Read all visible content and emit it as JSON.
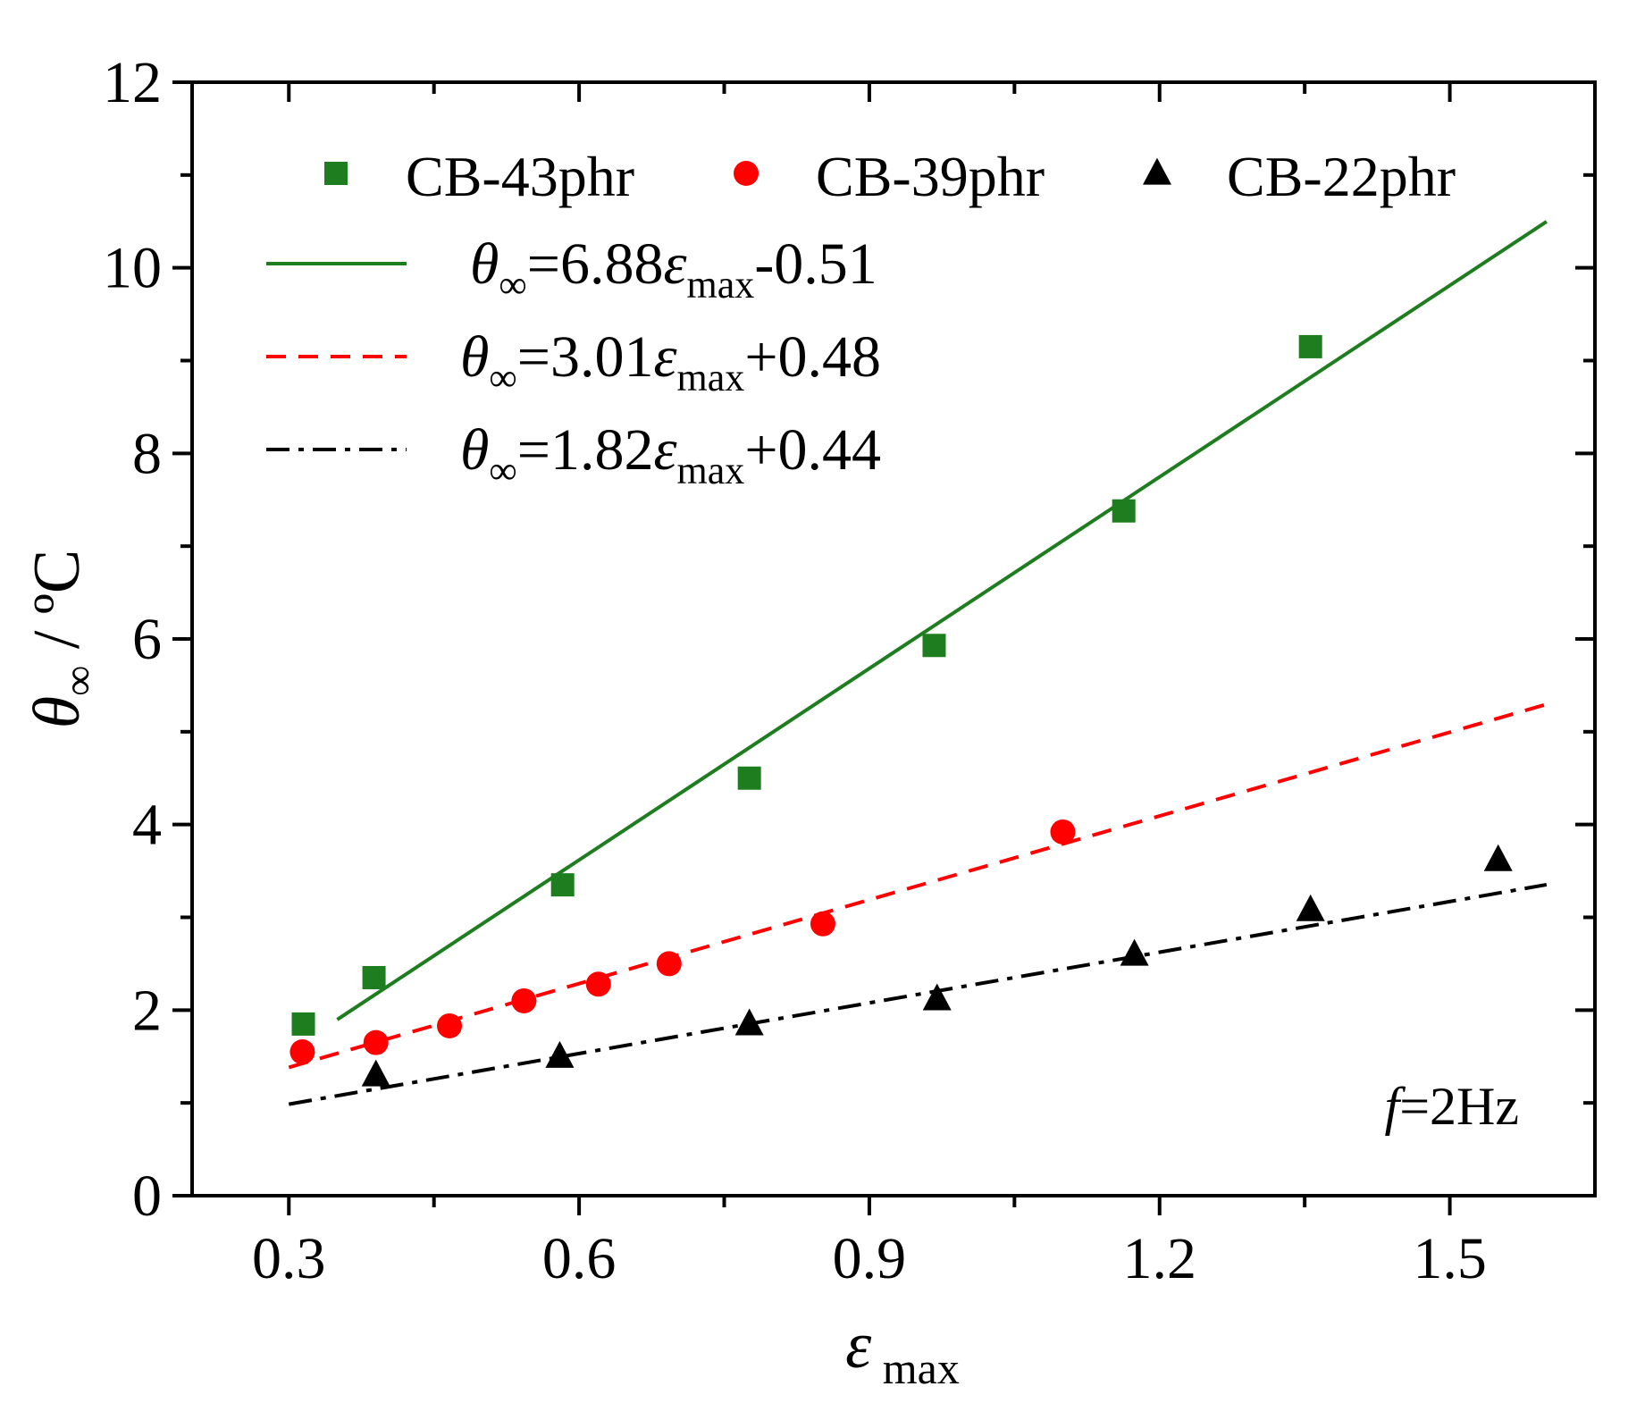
{
  "chart_data": {
    "type": "scatter",
    "xlabel": {
      "symbol": "ε",
      "sub": "max"
    },
    "ylabel": {
      "symbol": "θ",
      "sub": "∞",
      "unit": " / ºC"
    },
    "xlim": [
      0.2,
      1.65
    ],
    "ylim": [
      0,
      12
    ],
    "x_ticks": [
      0.3,
      0.6,
      0.9,
      1.2,
      1.5
    ],
    "x_tick_labels": [
      "0.3",
      "0.6",
      "0.9",
      "1.2",
      "1.5"
    ],
    "x_minor_ticks": [
      0.45,
      0.75,
      1.05,
      1.35
    ],
    "y_ticks": [
      0,
      2,
      4,
      6,
      8,
      10,
      12
    ],
    "y_tick_labels": [
      "0",
      "2",
      "4",
      "6",
      "8",
      "10",
      "12"
    ],
    "y_minor_ticks": [
      1,
      3,
      5,
      7,
      9,
      11
    ],
    "grid": false,
    "legend_position": "top",
    "series": [
      {
        "name": "CB-43phr",
        "marker": "square",
        "color": "#1e7d1e",
        "x": [
          0.315,
          0.388,
          0.583,
          0.776,
          0.967,
          1.163,
          1.356
        ],
        "y": [
          1.85,
          2.35,
          3.35,
          4.5,
          5.93,
          7.38,
          9.15
        ]
      },
      {
        "name": "CB-39phr",
        "marker": "circle",
        "color": "#ff0000",
        "x": [
          0.314,
          0.39,
          0.466,
          0.543,
          0.62,
          0.693,
          0.852,
          1.1
        ],
        "y": [
          1.55,
          1.65,
          1.83,
          2.1,
          2.28,
          2.5,
          2.93,
          3.92
        ]
      },
      {
        "name": "CB-22phr",
        "marker": "triangle",
        "color": "#000000",
        "x": [
          0.39,
          0.58,
          0.776,
          0.97,
          1.174,
          1.356,
          1.55
        ],
        "y": [
          1.3,
          1.5,
          1.85,
          2.12,
          2.6,
          3.08,
          3.62
        ]
      }
    ],
    "fits": [
      {
        "color": "#1e7d1e",
        "style": "solid",
        "slope": 6.88,
        "intercept": -0.51,
        "x_range": [
          0.35,
          1.6
        ],
        "parts": [
          "θ",
          "∞",
          "=6.88",
          "ε",
          "max",
          "-0.51"
        ]
      },
      {
        "color": "#ff0000",
        "style": "dash",
        "slope": 3.01,
        "intercept": 0.48,
        "x_range": [
          0.3,
          1.6
        ],
        "parts": [
          "θ",
          "∞",
          "=3.01",
          "ε",
          "max",
          "+0.48"
        ]
      },
      {
        "color": "#000000",
        "style": "dashdot",
        "slope": 1.82,
        "intercept": 0.44,
        "x_range": [
          0.3,
          1.6
        ],
        "parts": [
          "θ",
          "∞",
          "=1.82",
          "ε",
          "max",
          "+0.44"
        ]
      }
    ],
    "annotation": {
      "italic": "f",
      "rest": "=2Hz"
    }
  }
}
